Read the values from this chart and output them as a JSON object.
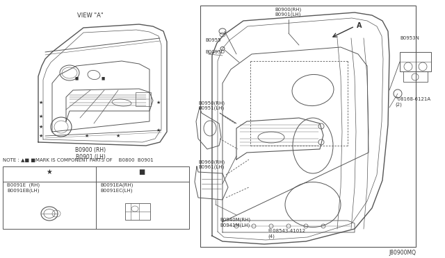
{
  "bg_color": "#ffffff",
  "line_color": "#555555",
  "fig_width": 6.4,
  "fig_height": 3.72,
  "dpi": 100,
  "labels": {
    "view_a": "VIEW \"A\"",
    "note": "NOTE : ▲■ ■MARK IS COMPONENT PARTS OF    B0800  B0901",
    "b0900_1": "B0900 (RH)\nB0901 (LH)",
    "b0900_2": "B0900(RH)\nB0901(LH)",
    "b0955": "B0955",
    "b0093d": "B0093D",
    "b0950": "B0950(RH)\nB0951(LH)",
    "b0960": "B0960(RH)\nB0961(LH)",
    "b0940m": "B0940M(RH)\nB0941M(LH)",
    "b08543": "®08543-41012\n(4)",
    "b0953n": "B0953N",
    "b0816b": "°08168-6121A\n(2)",
    "b0091e": "B0091E  (RH)\nB0091EB(LH)",
    "b0091ea": "B0091EA(RH)\nB0091EC(LH)",
    "arrow_a": "A",
    "j_number": "J80900MQ",
    "star": "★",
    "square": "■"
  }
}
